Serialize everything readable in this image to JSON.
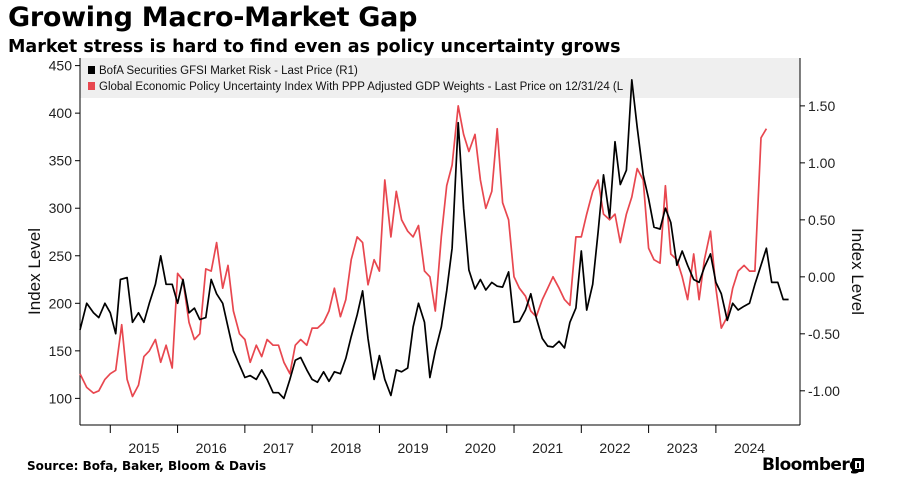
{
  "header": {
    "title": "Growing Macro-Market Gap",
    "subtitle": "Market stress is hard to find even as policy uncertainty grows"
  },
  "footer": {
    "source": "Source: Bofa, Baker, Bloom & Davis",
    "logo": "Bloomberg"
  },
  "chart_data": {
    "type": "line",
    "title": "Growing Macro-Market Gap",
    "subtitle": "Market stress is hard to find even as policy uncertainty grows",
    "x_tick_labels": [
      "2015",
      "2016",
      "2017",
      "2018",
      "2019",
      "2020",
      "2021",
      "2022",
      "2023",
      "2024"
    ],
    "x_range": [
      2014.55,
      2025.25
    ],
    "left_axis": {
      "label": "Index Level",
      "range": [
        72,
        458
      ],
      "ticks": [
        100,
        150,
        200,
        250,
        300,
        350,
        400,
        450
      ]
    },
    "right_axis": {
      "label": "Index Level",
      "range": [
        -1.3,
        1.92
      ],
      "ticks": [
        -1.0,
        -0.5,
        0.0,
        0.5,
        1.0,
        1.5
      ],
      "tick_labels": [
        "-1.00",
        "-0.50",
        "0.00",
        "0.50",
        "1.00",
        "1.50"
      ]
    },
    "grid": false,
    "legend_position": "top-left",
    "series": [
      {
        "name": "BofA Securities GFSI Market Risk - Last Price (R1)",
        "color": "#000000",
        "axis": "left",
        "points": [
          [
            2014.55,
            172
          ],
          [
            2014.65,
            200
          ],
          [
            2014.75,
            190
          ],
          [
            2014.83,
            185
          ],
          [
            2014.92,
            200
          ],
          [
            2015.0,
            190
          ],
          [
            2015.08,
            168
          ],
          [
            2015.15,
            225
          ],
          [
            2015.25,
            227
          ],
          [
            2015.33,
            180
          ],
          [
            2015.42,
            190
          ],
          [
            2015.5,
            180
          ],
          [
            2015.58,
            200
          ],
          [
            2015.67,
            220
          ],
          [
            2015.75,
            250
          ],
          [
            2015.83,
            220
          ],
          [
            2015.92,
            220
          ],
          [
            2016.0,
            200
          ],
          [
            2016.08,
            225
          ],
          [
            2016.17,
            190
          ],
          [
            2016.25,
            195
          ],
          [
            2016.33,
            183
          ],
          [
            2016.42,
            185
          ],
          [
            2016.5,
            225
          ],
          [
            2016.58,
            210
          ],
          [
            2016.67,
            200
          ],
          [
            2016.75,
            175
          ],
          [
            2016.83,
            150
          ],
          [
            2016.92,
            135
          ],
          [
            2017.0,
            122
          ],
          [
            2017.08,
            124
          ],
          [
            2017.17,
            120
          ],
          [
            2017.25,
            130
          ],
          [
            2017.33,
            120
          ],
          [
            2017.42,
            106
          ],
          [
            2017.5,
            106
          ],
          [
            2017.58,
            100
          ],
          [
            2017.67,
            120
          ],
          [
            2017.75,
            140
          ],
          [
            2017.83,
            143
          ],
          [
            2017.92,
            130
          ],
          [
            2018.0,
            120
          ],
          [
            2018.08,
            117
          ],
          [
            2018.17,
            128
          ],
          [
            2018.25,
            118
          ],
          [
            2018.33,
            128
          ],
          [
            2018.42,
            126
          ],
          [
            2018.5,
            142
          ],
          [
            2018.58,
            165
          ],
          [
            2018.67,
            188
          ],
          [
            2018.75,
            213
          ],
          [
            2018.83,
            163
          ],
          [
            2018.92,
            120
          ],
          [
            2019.0,
            145
          ],
          [
            2019.08,
            120
          ],
          [
            2019.17,
            103
          ],
          [
            2019.25,
            130
          ],
          [
            2019.33,
            128
          ],
          [
            2019.42,
            132
          ],
          [
            2019.5,
            175
          ],
          [
            2019.58,
            200
          ],
          [
            2019.67,
            180
          ],
          [
            2019.75,
            122
          ],
          [
            2019.83,
            150
          ],
          [
            2019.92,
            175
          ],
          [
            2020.0,
            213
          ],
          [
            2020.08,
            258
          ],
          [
            2020.17,
            390
          ],
          [
            2020.25,
            300
          ],
          [
            2020.33,
            235
          ],
          [
            2020.42,
            215
          ],
          [
            2020.5,
            225
          ],
          [
            2020.58,
            214
          ],
          [
            2020.67,
            222
          ],
          [
            2020.75,
            218
          ],
          [
            2020.83,
            217
          ],
          [
            2020.92,
            233
          ],
          [
            2021.0,
            180
          ],
          [
            2021.08,
            181
          ],
          [
            2021.17,
            193
          ],
          [
            2021.25,
            210
          ],
          [
            2021.33,
            185
          ],
          [
            2021.42,
            163
          ],
          [
            2021.5,
            155
          ],
          [
            2021.58,
            154
          ],
          [
            2021.67,
            160
          ],
          [
            2021.75,
            153
          ],
          [
            2021.83,
            180
          ],
          [
            2021.92,
            195
          ],
          [
            2022.0,
            255
          ],
          [
            2022.08,
            193
          ],
          [
            2022.17,
            220
          ],
          [
            2022.25,
            275
          ],
          [
            2022.33,
            335
          ],
          [
            2022.42,
            290
          ],
          [
            2022.5,
            370
          ],
          [
            2022.58,
            325
          ],
          [
            2022.67,
            340
          ],
          [
            2022.75,
            435
          ],
          [
            2022.83,
            385
          ],
          [
            2022.92,
            335
          ],
          [
            2023.0,
            310
          ],
          [
            2023.08,
            280
          ],
          [
            2023.17,
            278
          ],
          [
            2023.25,
            300
          ],
          [
            2023.33,
            285
          ],
          [
            2023.42,
            240
          ],
          [
            2023.5,
            255
          ],
          [
            2023.58,
            240
          ],
          [
            2023.67,
            225
          ],
          [
            2023.75,
            222
          ],
          [
            2023.83,
            238
          ],
          [
            2023.92,
            252
          ],
          [
            2024.0,
            222
          ],
          [
            2024.08,
            210
          ],
          [
            2024.17,
            182
          ],
          [
            2024.25,
            200
          ],
          [
            2024.33,
            193
          ],
          [
            2024.42,
            197
          ],
          [
            2024.5,
            200
          ],
          [
            2024.58,
            220
          ],
          [
            2024.67,
            240
          ],
          [
            2024.75,
            258
          ],
          [
            2024.83,
            222
          ],
          [
            2024.92,
            222
          ],
          [
            2025.0,
            204
          ],
          [
            2025.08,
            204
          ]
        ]
      },
      {
        "name": "Global Economic Policy Uncertainty Index With PPP Adjusted GDP Weights - Last Price on 12/31/24 (L",
        "color": "#e8474f",
        "axis": "right",
        "points": [
          [
            2014.55,
            -0.85
          ],
          [
            2014.65,
            -0.97
          ],
          [
            2014.75,
            -1.02
          ],
          [
            2014.83,
            -1.0
          ],
          [
            2014.92,
            -0.9
          ],
          [
            2015.0,
            -0.85
          ],
          [
            2015.08,
            -0.82
          ],
          [
            2015.17,
            -0.42
          ],
          [
            2015.25,
            -0.9
          ],
          [
            2015.33,
            -1.05
          ],
          [
            2015.42,
            -0.95
          ],
          [
            2015.5,
            -0.7
          ],
          [
            2015.58,
            -0.65
          ],
          [
            2015.67,
            -0.55
          ],
          [
            2015.75,
            -0.75
          ],
          [
            2015.83,
            -0.6
          ],
          [
            2015.92,
            -0.8
          ],
          [
            2016.0,
            0.03
          ],
          [
            2016.08,
            -0.03
          ],
          [
            2016.17,
            -0.4
          ],
          [
            2016.25,
            -0.55
          ],
          [
            2016.33,
            -0.5
          ],
          [
            2016.42,
            0.07
          ],
          [
            2016.5,
            0.05
          ],
          [
            2016.58,
            0.3
          ],
          [
            2016.67,
            -0.1
          ],
          [
            2016.75,
            0.1
          ],
          [
            2016.83,
            -0.3
          ],
          [
            2016.92,
            -0.5
          ],
          [
            2017.0,
            -0.55
          ],
          [
            2017.08,
            -0.75
          ],
          [
            2017.17,
            -0.6
          ],
          [
            2017.25,
            -0.7
          ],
          [
            2017.33,
            -0.55
          ],
          [
            2017.42,
            -0.6
          ],
          [
            2017.5,
            -0.6
          ],
          [
            2017.58,
            -0.75
          ],
          [
            2017.67,
            -0.85
          ],
          [
            2017.75,
            -0.6
          ],
          [
            2017.83,
            -0.55
          ],
          [
            2017.92,
            -0.6
          ],
          [
            2018.0,
            -0.45
          ],
          [
            2018.08,
            -0.45
          ],
          [
            2018.17,
            -0.4
          ],
          [
            2018.25,
            -0.3
          ],
          [
            2018.33,
            -0.1
          ],
          [
            2018.42,
            -0.35
          ],
          [
            2018.5,
            -0.2
          ],
          [
            2018.58,
            0.15
          ],
          [
            2018.67,
            0.35
          ],
          [
            2018.75,
            0.3
          ],
          [
            2018.83,
            -0.07
          ],
          [
            2018.92,
            0.15
          ],
          [
            2019.0,
            0.05
          ],
          [
            2019.08,
            0.85
          ],
          [
            2019.17,
            0.35
          ],
          [
            2019.25,
            0.75
          ],
          [
            2019.33,
            0.5
          ],
          [
            2019.42,
            0.4
          ],
          [
            2019.5,
            0.35
          ],
          [
            2019.58,
            0.45
          ],
          [
            2019.67,
            0.05
          ],
          [
            2019.75,
            0.0
          ],
          [
            2019.83,
            -0.3
          ],
          [
            2019.92,
            0.35
          ],
          [
            2020.0,
            0.8
          ],
          [
            2020.08,
            0.98
          ],
          [
            2020.17,
            1.5
          ],
          [
            2020.25,
            1.25
          ],
          [
            2020.33,
            1.1
          ],
          [
            2020.42,
            1.25
          ],
          [
            2020.5,
            0.85
          ],
          [
            2020.58,
            0.6
          ],
          [
            2020.67,
            0.75
          ],
          [
            2020.75,
            1.3
          ],
          [
            2020.83,
            0.65
          ],
          [
            2020.92,
            0.5
          ],
          [
            2021.0,
            0.0
          ],
          [
            2021.08,
            -0.1
          ],
          [
            2021.17,
            -0.17
          ],
          [
            2021.25,
            -0.3
          ],
          [
            2021.33,
            -0.35
          ],
          [
            2021.42,
            -0.2
          ],
          [
            2021.5,
            -0.1
          ],
          [
            2021.58,
            0.0
          ],
          [
            2021.67,
            -0.1
          ],
          [
            2021.75,
            -0.2
          ],
          [
            2021.83,
            -0.25
          ],
          [
            2021.92,
            0.35
          ],
          [
            2022.0,
            0.35
          ],
          [
            2022.08,
            0.55
          ],
          [
            2022.17,
            0.75
          ],
          [
            2022.25,
            0.85
          ],
          [
            2022.33,
            0.55
          ],
          [
            2022.42,
            0.5
          ],
          [
            2022.5,
            0.55
          ],
          [
            2022.58,
            0.3
          ],
          [
            2022.67,
            0.55
          ],
          [
            2022.75,
            0.7
          ],
          [
            2022.83,
            0.95
          ],
          [
            2022.92,
            0.85
          ],
          [
            2023.0,
            0.25
          ],
          [
            2023.08,
            0.15
          ],
          [
            2023.17,
            0.12
          ],
          [
            2023.25,
            0.8
          ],
          [
            2023.33,
            0.2
          ],
          [
            2023.42,
            0.15
          ],
          [
            2023.5,
            0.0
          ],
          [
            2023.58,
            -0.2
          ],
          [
            2023.67,
            0.2
          ],
          [
            2023.75,
            -0.2
          ],
          [
            2023.83,
            0.15
          ],
          [
            2023.92,
            0.4
          ],
          [
            2024.0,
            -0.1
          ],
          [
            2024.08,
            -0.45
          ],
          [
            2024.17,
            -0.35
          ],
          [
            2024.25,
            -0.1
          ],
          [
            2024.33,
            0.05
          ],
          [
            2024.42,
            0.1
          ],
          [
            2024.5,
            0.05
          ],
          [
            2024.58,
            0.05
          ],
          [
            2024.67,
            1.22
          ],
          [
            2024.75,
            1.3
          ]
        ]
      }
    ]
  }
}
